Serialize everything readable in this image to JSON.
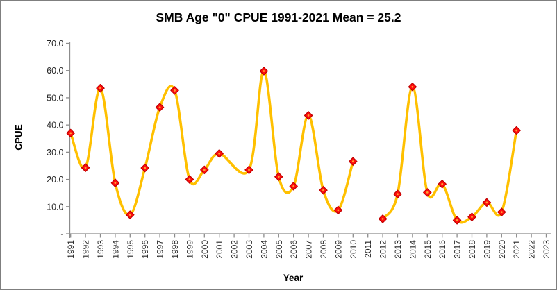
{
  "frame": {
    "background": "#FFFFFF",
    "border_color": "#7F7F7F"
  },
  "chart_data": {
    "type": "line",
    "title": "SMB Age \"0\" CPUE 1991-2021 Mean = 25.2",
    "xlabel": "Year",
    "ylabel": "CPUE",
    "x": [
      "1991",
      "1992",
      "1993",
      "1994",
      "1995",
      "1996",
      "1997",
      "1998",
      "1999",
      "2000",
      "2001",
      "2002",
      "2003",
      "2004",
      "2005",
      "2006",
      "2007",
      "2008",
      "2009",
      "2010",
      "2011",
      "2012",
      "2013",
      "2014",
      "2015",
      "2016",
      "2017",
      "2018",
      "2019",
      "2020",
      "2021",
      "2022",
      "2023"
    ],
    "values": [
      37.0,
      24.3,
      53.5,
      18.7,
      7.0,
      24.2,
      46.5,
      52.7,
      20.0,
      23.5,
      29.5,
      null,
      23.5,
      59.8,
      21.0,
      17.5,
      43.5,
      16.0,
      8.7,
      26.6,
      null,
      5.5,
      14.6,
      54.0,
      15.2,
      18.3,
      5.0,
      6.2,
      11.5,
      8.0,
      38.0,
      null,
      null
    ],
    "mean": 25.2,
    "line_gap_years": [
      "2011"
    ],
    "ylim": [
      0,
      70
    ],
    "ytick_step": 10,
    "ytick_labels_top_to_bottom": [
      "70.0",
      "60.0",
      "50.0",
      "40.0",
      "30.0",
      "20.0",
      "10.0",
      "-"
    ],
    "grid": false,
    "legend": "none",
    "smooth": true,
    "line_color": "#FFC000",
    "marker": "diamond",
    "marker_fill": "#FF0D0D",
    "marker_edge": "#C00000",
    "marker_center_dot": "#FFA033",
    "axis_color": "#8C8C8C",
    "tick_label_color": "#262626",
    "text_color": "#000000"
  }
}
